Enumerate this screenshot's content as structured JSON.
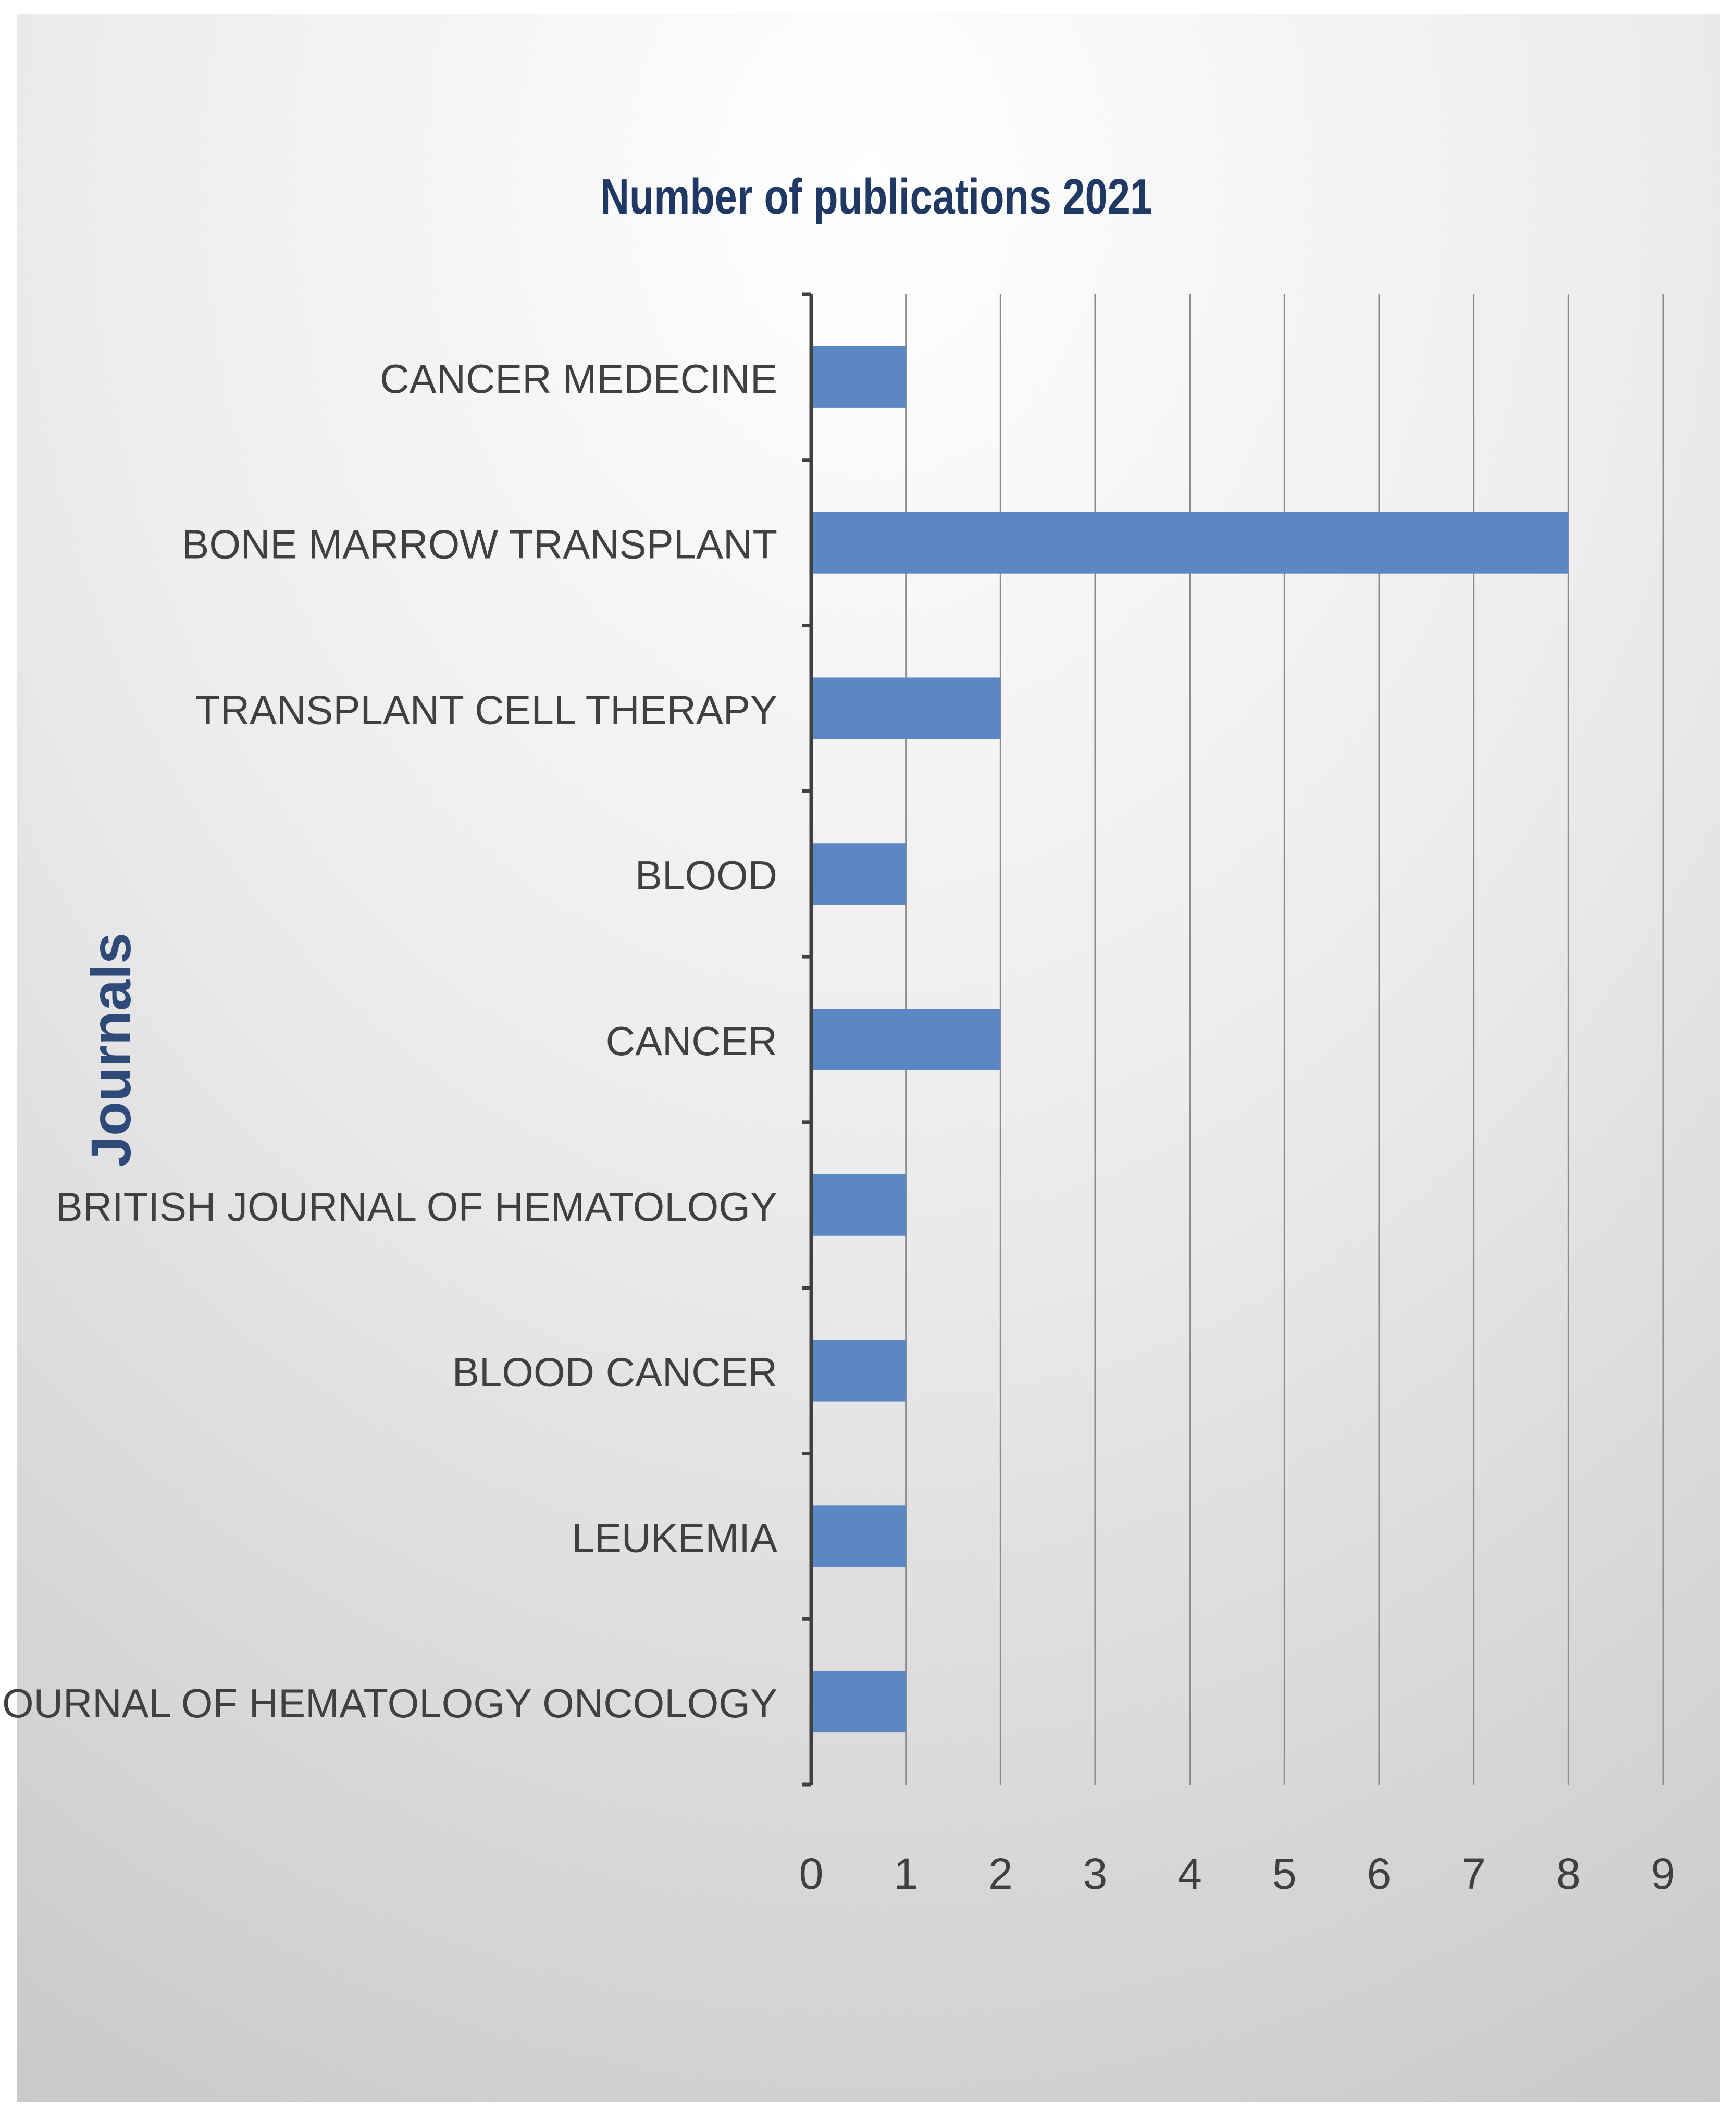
{
  "chart_data": {
    "type": "bar",
    "orientation": "horizontal",
    "title": "Number of publications 2021",
    "ylabel": "Journals",
    "xlabel": "",
    "categories": [
      "CANCER MEDECINE",
      "BONE MARROW TRANSPLANT",
      "TRANSPLANT CELL THERAPY",
      "BLOOD",
      "CANCER",
      "BRITISH JOURNAL OF HEMATOLOGY",
      "BLOOD CANCER",
      "LEUKEMIA",
      "JOURNAL OF HEMATOLOGY ONCOLOGY"
    ],
    "values": [
      1,
      8,
      2,
      1,
      2,
      1,
      1,
      1,
      1
    ],
    "xlim": [
      0,
      9
    ],
    "xticks": [
      "0",
      "1",
      "2",
      "3",
      "4",
      "5",
      "6",
      "7",
      "8",
      "9"
    ],
    "grid": true,
    "legend": "none",
    "colors": {
      "bar": "#5b87c5",
      "title": "#1f3864",
      "axis_title": "#2e4a78",
      "label": "#404040",
      "gridline": "#8c8c8c",
      "axis": "#404040",
      "background_light": "#ffffff",
      "background_dark": "#cfcfcf"
    }
  }
}
